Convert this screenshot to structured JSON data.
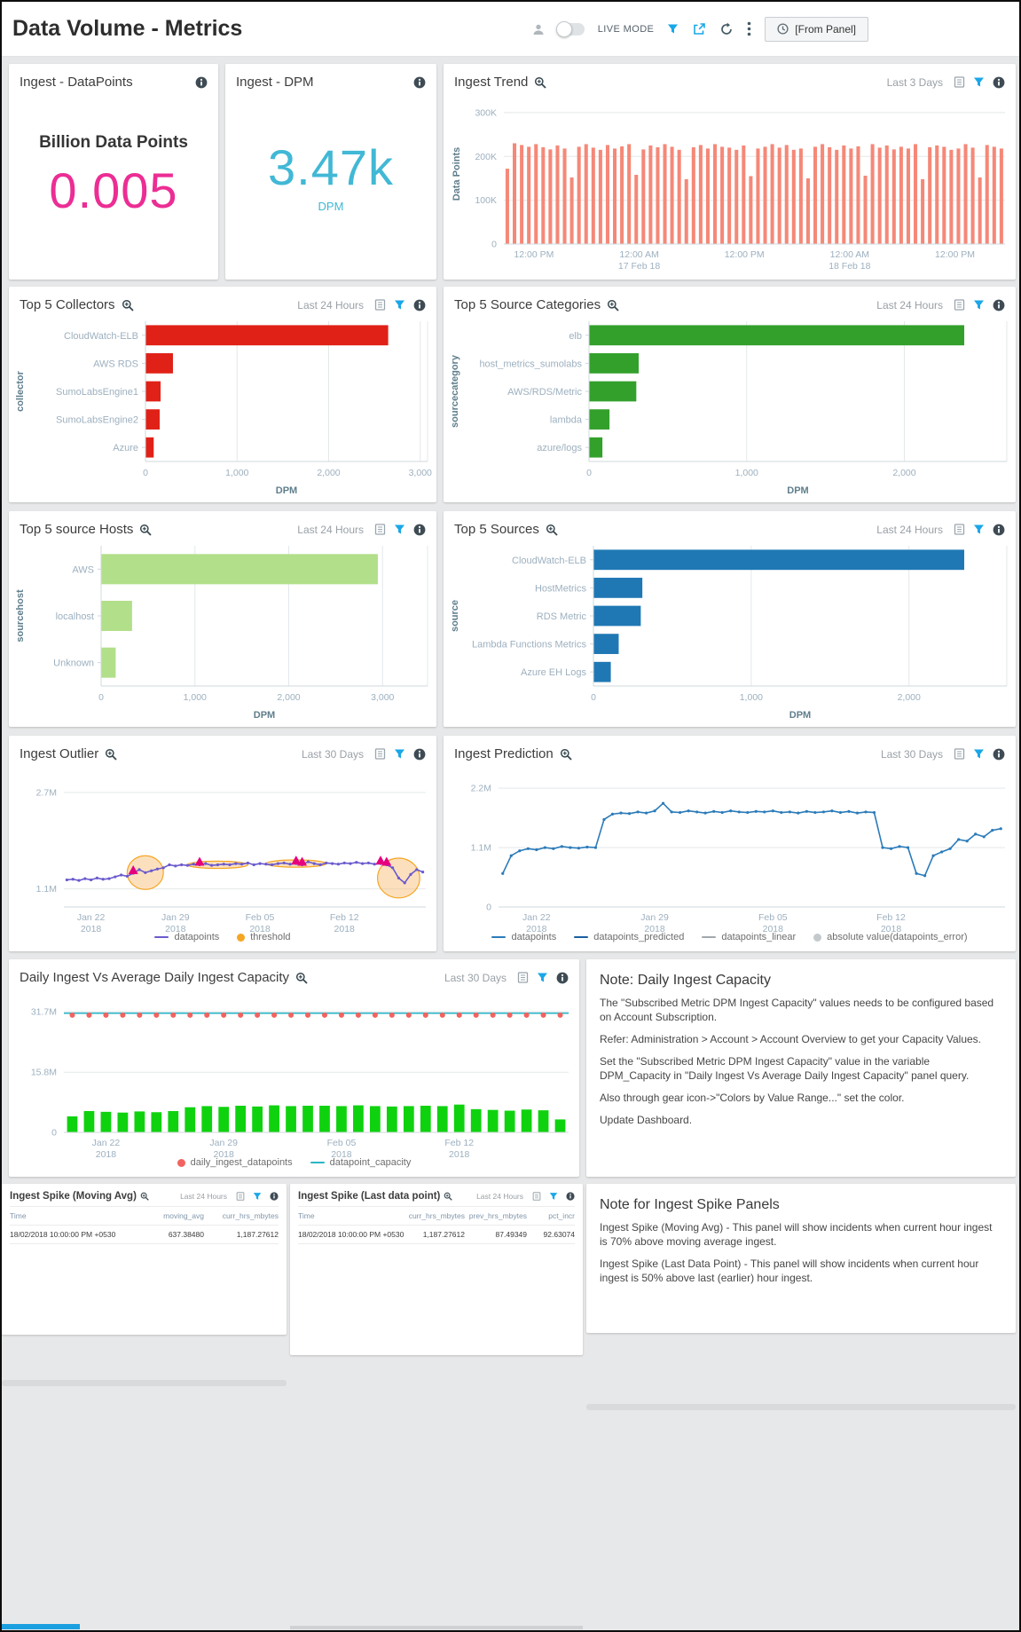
{
  "header": {
    "title": "Data Volume - Metrics",
    "live_mode": "LIVE MODE",
    "from_panel": "[From Panel]"
  },
  "colors": {
    "accent_blue": "#1aa7e8",
    "pink": "#ec2d94",
    "cyan": "#41b8d5",
    "red_bar": "#e02117",
    "trend_bar": "#f58878",
    "green_bar": "#33a02c",
    "light_green_bar": "#b2df8a",
    "blue_bar": "#1f78b4",
    "outlier_line": "#6a5acd",
    "threshold_orange": "#f5a623",
    "outlier_marker": "#e6007e",
    "prediction_line": "#2b7bb9",
    "capacity_line": "#29b6c6",
    "ingest_dot": "#f2635f",
    "daily_bar": "#0fd20f"
  },
  "panels": {
    "ingest_datapoints": {
      "title": "Ingest - DataPoints",
      "subtitle": "Billion Data Points",
      "value": "0.005"
    },
    "ingest_dpm": {
      "title": "Ingest - DPM",
      "value": "3.47k",
      "unit": "DPM"
    },
    "ingest_trend": {
      "title": "Ingest Trend",
      "time_range": "Last 3 Days"
    },
    "top_collectors": {
      "title": "Top 5 Collectors",
      "time_range": "Last 24 Hours"
    },
    "top_source_categories": {
      "title": "Top 5 Source Categories",
      "time_range": "Last 24 Hours"
    },
    "top_source_hosts": {
      "title": "Top 5 source Hosts",
      "time_range": "Last 24 Hours"
    },
    "top_sources": {
      "title": "Top 5 Sources",
      "time_range": "Last 24 Hours"
    },
    "ingest_outlier": {
      "title": "Ingest Outlier",
      "time_range": "Last 30 Days"
    },
    "ingest_prediction": {
      "title": "Ingest Prediction",
      "time_range": "Last 30 Days"
    },
    "daily_capacity": {
      "title": "Daily Ingest Vs Average Daily Ingest Capacity",
      "time_range": "Last 30 Days"
    },
    "note_capacity": {
      "title": "Note: Daily Ingest Capacity",
      "paragraphs": [
        "The \"Subscribed Metric DPM Ingest Capacity\" values needs to be configured based on Account Subscription.",
        "Refer: Administration > Account > Account Overview to get your Capacity Values.",
        "Set the \"Subscribed Metric DPM Ingest Capacity\" value in the variable DPM_Capacity in \"Daily Ingest Vs Average Daily Ingest Capacity\" panel query.",
        "Also through gear icon->\"Colors by Value Range...\" set the color.",
        "Update Dashboard."
      ]
    },
    "spike_moving": {
      "title": "Ingest Spike (Moving Avg)",
      "time_range": "Last 24 Hours",
      "table": {
        "columns": [
          "Time",
          "moving_avg",
          "curr_hrs_mbytes"
        ],
        "rows": [
          [
            "18/02/2018 10:00:00 PM +0530",
            "637.38480",
            "1,187.27612"
          ]
        ]
      }
    },
    "spike_last": {
      "title": "Ingest Spike (Last data point)",
      "time_range": "Last 24 Hours",
      "table": {
        "columns": [
          "Time",
          "curr_hrs_mbytes",
          "prev_hrs_mbytes",
          "pct_incr"
        ],
        "rows": [
          [
            "18/02/2018 10:00:00 PM +0530",
            "1,187.27612",
            "87.49349",
            "92.63074"
          ]
        ]
      }
    },
    "note_spike": {
      "title": "Note for Ingest Spike Panels",
      "paragraphs": [
        "Ingest Spike (Moving Avg) - This panel will show incidents when current hour ingest is 70% above moving average ingest.",
        "Ingest Spike (Last Data Point) - This panel will show incidents when current hour ingest is 50% above last (earlier) hour ingest."
      ]
    }
  },
  "chart_data": [
    {
      "id": "ingest_trend",
      "type": "bar",
      "title": "Ingest Trend",
      "unit": "data points (thousands)",
      "ylabel": "Data Points",
      "yticks": [
        0,
        100,
        200,
        300
      ],
      "ytick_labels": [
        "0",
        "100K",
        "200K",
        "300K"
      ],
      "ylim": [
        0,
        320
      ],
      "xticks": [
        {
          "pos": 0.06,
          "label": "12:00 PM"
        },
        {
          "pos": 0.27,
          "label": "12:00 AM",
          "sub": "17 Feb 18"
        },
        {
          "pos": 0.48,
          "label": "12:00 PM"
        },
        {
          "pos": 0.69,
          "label": "12:00 AM",
          "sub": "18 Feb 18"
        },
        {
          "pos": 0.9,
          "label": "12:00 PM"
        }
      ],
      "bar_color": "#f58878",
      "values": [
        172,
        230,
        226,
        222,
        228,
        221,
        216,
        225,
        218,
        152,
        222,
        228,
        220,
        215,
        226,
        218,
        223,
        228,
        158,
        216,
        225,
        221,
        228,
        222,
        215,
        148,
        221,
        226,
        218,
        228,
        222,
        220,
        215,
        225,
        155,
        218,
        222,
        228,
        220,
        226,
        215,
        218,
        150,
        222,
        228,
        221,
        215,
        225,
        218,
        223,
        156,
        228,
        220,
        225,
        216,
        222,
        218,
        228,
        148,
        221,
        225,
        222,
        215,
        218,
        228,
        220,
        152,
        226,
        222,
        218
      ]
    },
    {
      "id": "top_collectors",
      "type": "barh",
      "title": "Top 5 Collectors",
      "ylabel": "collector",
      "xlabel": "DPM",
      "ml": 150,
      "categories": [
        "CloudWatch-ELB",
        "AWS RDS",
        "SumoLabsEngine1",
        "SumoLabsEngine2",
        "Azure"
      ],
      "values": [
        2650,
        300,
        165,
        155,
        90
      ],
      "xticks": [
        0,
        1000,
        2000,
        3000
      ],
      "xlim": [
        0,
        3080
      ],
      "bar_color": "#e02117"
    },
    {
      "id": "top_source_categories",
      "type": "barh",
      "title": "Top 5 Source Categories",
      "ylabel": "sourcecategory",
      "xlabel": "DPM",
      "ml": 160,
      "categories": [
        "elb",
        "host_metrics_sumolabs",
        "AWS/RDS/Metric",
        "lambda",
        "azure/logs"
      ],
      "values": [
        2380,
        315,
        300,
        130,
        85
      ],
      "xticks": [
        0,
        1000,
        2000
      ],
      "xlim": [
        0,
        2650
      ],
      "bar_color": "#33a02c"
    },
    {
      "id": "top_source_hosts",
      "type": "barh",
      "title": "Top 5 source Hosts",
      "ylabel": "sourcehost",
      "xlabel": "DPM",
      "ml": 100,
      "categories": [
        "AWS",
        "localhost",
        "Unknown"
      ],
      "values": [
        2950,
        330,
        155
      ],
      "xticks": [
        0,
        1000,
        2000,
        3000
      ],
      "xlim": [
        0,
        3480
      ],
      "bar_color": "#b2df8a"
    },
    {
      "id": "top_sources",
      "type": "barh",
      "title": "Top 5 Sources",
      "ylabel": "source",
      "xlabel": "DPM",
      "ml": 165,
      "categories": [
        "CloudWatch-ELB",
        "HostMetrics",
        "RDS Metric",
        "Lambda Functions Metrics",
        "Azure EH Logs"
      ],
      "values": [
        2350,
        310,
        300,
        160,
        110
      ],
      "xticks": [
        0,
        1000,
        2000
      ],
      "xlim": [
        0,
        2620
      ],
      "bar_color": "#1f78b4"
    },
    {
      "id": "ingest_outlier",
      "type": "outlier",
      "title": "Ingest Outlier",
      "unit": "M data points",
      "yticks": [
        1.1,
        2.7
      ],
      "ytick_labels": [
        "1.1M",
        "2.7M"
      ],
      "ylim": [
        0.8,
        2.95
      ],
      "xticks": [
        {
          "idx": 4,
          "label": "Jan 22",
          "sub": "2018"
        },
        {
          "idx": 18,
          "label": "Jan 29",
          "sub": "2018"
        },
        {
          "idx": 32,
          "label": "Feb 05",
          "sub": "2018"
        },
        {
          "idx": 46,
          "label": "Feb 12",
          "sub": "2018"
        }
      ],
      "values": [
        1.25,
        1.26,
        1.24,
        1.27,
        1.25,
        1.28,
        1.26,
        1.27,
        1.3,
        1.33,
        1.31,
        1.36,
        1.42,
        1.37,
        1.4,
        1.43,
        1.45,
        1.5,
        1.48,
        1.5,
        1.49,
        1.51,
        1.5,
        1.52,
        1.49,
        1.5,
        1.51,
        1.5,
        1.52,
        1.51,
        1.53,
        1.5,
        1.52,
        1.51,
        1.5,
        1.52,
        1.53,
        1.51,
        1.52,
        1.5,
        1.55,
        1.52,
        1.5,
        1.53,
        1.52,
        1.51,
        1.53,
        1.52,
        1.54,
        1.52,
        1.53,
        1.51,
        1.52,
        1.5,
        1.45,
        1.28,
        1.2,
        1.34,
        1.42,
        1.38
      ],
      "outlier_indices": [
        11,
        22,
        38,
        39,
        52,
        53
      ],
      "threshold_regions": [
        {
          "center": 13,
          "rx": 3,
          "ry": 0.28
        },
        {
          "center": 25,
          "rx": 5,
          "ry": 0.06
        },
        {
          "center": 38,
          "rx": 5,
          "ry": 0.06
        },
        {
          "center": 55,
          "rx": 3.5,
          "ry": 0.33
        }
      ],
      "line_color": "#6a5acd",
      "threshold_color": "#f5a623",
      "outlier_color": "#e6007e",
      "legend": [
        {
          "label": "datapoints",
          "marker": "line",
          "color": "#6a5acd"
        },
        {
          "label": "threshold",
          "marker": "dot",
          "color": "#f5a623"
        }
      ]
    },
    {
      "id": "ingest_prediction",
      "type": "line",
      "title": "Ingest Prediction",
      "unit": "M data points",
      "yticks": [
        0,
        1.1,
        2.2
      ],
      "ytick_labels": [
        "0",
        "1.1M",
        "2.2M"
      ],
      "ylim": [
        0,
        2.4
      ],
      "xticks": [
        {
          "idx": 4,
          "label": "Jan 22",
          "sub": "2018"
        },
        {
          "idx": 18,
          "label": "Jan 29",
          "sub": "2018"
        },
        {
          "idx": 32,
          "label": "Feb 05",
          "sub": "2018"
        },
        {
          "idx": 46,
          "label": "Feb 12",
          "sub": "2018"
        }
      ],
      "values": [
        0.62,
        0.95,
        1.04,
        1.08,
        1.06,
        1.1,
        1.08,
        1.12,
        1.1,
        1.09,
        1.11,
        1.1,
        1.62,
        1.72,
        1.74,
        1.73,
        1.76,
        1.74,
        1.78,
        1.92,
        1.76,
        1.75,
        1.78,
        1.76,
        1.74,
        1.77,
        1.75,
        1.78,
        1.76,
        1.75,
        1.77,
        1.76,
        1.78,
        1.75,
        1.76,
        1.74,
        1.77,
        1.75,
        1.76,
        1.78,
        1.75,
        1.77,
        1.74,
        1.76,
        1.75,
        1.1,
        1.08,
        1.12,
        1.1,
        0.62,
        0.58,
        0.95,
        1.02,
        1.08,
        1.25,
        1.22,
        1.35,
        1.3,
        1.42,
        1.45
      ],
      "line_color": "#2b7bb9",
      "legend": [
        {
          "label": "datapoints",
          "marker": "line",
          "color": "#2b7bb9"
        },
        {
          "label": "datapoints_predicted",
          "marker": "line",
          "color": "#1a5fa0"
        },
        {
          "label": "datapoints_linear",
          "marker": "line",
          "color": "#a0a8ad"
        },
        {
          "label": "absolute value(datapoints_error)",
          "marker": "dot",
          "color": "#c4c9cc"
        }
      ]
    },
    {
      "id": "daily_capacity",
      "type": "capacity",
      "title": "Daily Ingest Vs Average Daily Ingest Capacity",
      "unit": "M data points",
      "yticks": [
        0,
        15.8,
        31.7
      ],
      "ytick_labels": [
        "0",
        "15.8M",
        "31.7M"
      ],
      "ylim": [
        0,
        34.5
      ],
      "xticks": [
        {
          "idx": 2,
          "label": "Jan 22",
          "sub": "2018"
        },
        {
          "idx": 9,
          "label": "Jan 29",
          "sub": "2018"
        },
        {
          "idx": 16,
          "label": "Feb 05",
          "sub": "2018"
        },
        {
          "idx": 23,
          "label": "Feb 12",
          "sub": "2018"
        }
      ],
      "bars": [
        4.2,
        5.6,
        5.4,
        5.2,
        5.5,
        5.3,
        5.6,
        6.6,
        6.9,
        6.7,
        7.0,
        6.8,
        7.1,
        6.9,
        7.0,
        7.0,
        6.9,
        7.1,
        6.9,
        6.8,
        6.9,
        7.0,
        6.9,
        7.3,
        6.1,
        5.9,
        5.7,
        6.0,
        5.8,
        3.4
      ],
      "dots_value": 30.8,
      "line_value": 31.3,
      "bar_color": "#0fd20f",
      "dot_color": "#f2635f",
      "line_color": "#29b6c6",
      "legend": [
        {
          "label": "daily_ingest_datapoints",
          "marker": "dot",
          "color": "#f2635f"
        },
        {
          "label": "datapoint_capacity",
          "marker": "line",
          "color": "#29b6c6"
        }
      ]
    }
  ]
}
